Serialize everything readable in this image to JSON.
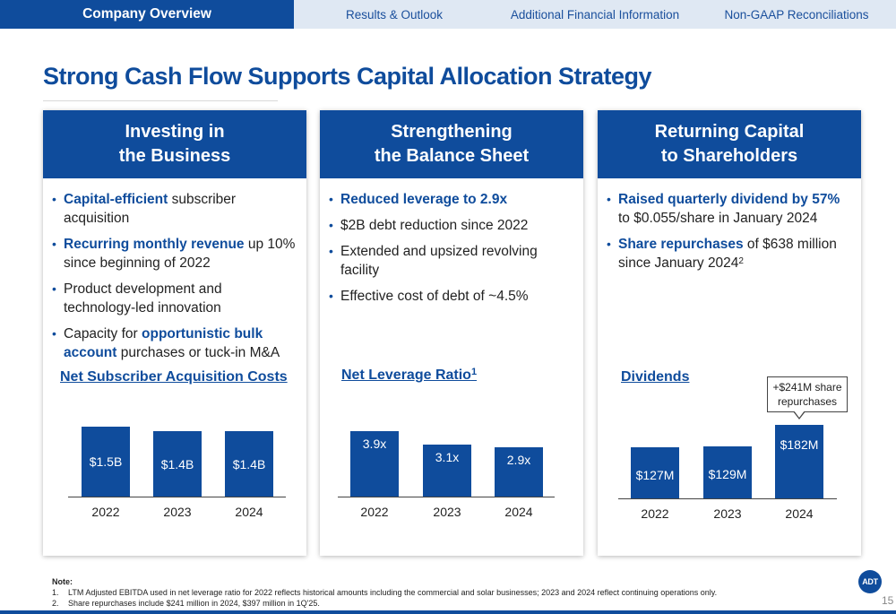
{
  "nav": {
    "active": "Company Overview",
    "tabs": [
      "Results & Outlook",
      "Additional Financial Information",
      "Non-GAAP Reconciliations"
    ]
  },
  "title": "Strong Cash Flow Supports Capital Allocation Strategy",
  "cards": [
    {
      "header_line1": "Investing in",
      "header_line2": "the Business",
      "bullets": [
        {
          "hl": "Capital-efficient",
          "text": " subscriber acquisition"
        },
        {
          "hl": "Recurring monthly revenue",
          "text": " up 10% since beginning of 2022"
        },
        {
          "pre": "Product development and technology-led innovation"
        },
        {
          "pre": "Capacity for ",
          "hl": "opportunistic bulk account",
          "text": " purchases or tuck-in M&A"
        }
      ]
    },
    {
      "header_line1": "Strengthening",
      "header_line2": "the Balance Sheet",
      "bullets": [
        {
          "hl": "Reduced leverage to 2.9x"
        },
        {
          "pre": "$2B debt reduction since 2022"
        },
        {
          "pre": "Extended and upsized revolving facility"
        },
        {
          "pre": "Effective cost of debt of ~4.5%"
        }
      ]
    },
    {
      "header_line1": "Returning Capital",
      "header_line2": "to Shareholders",
      "bullets": [
        {
          "hl": "Raised quarterly dividend by 57%",
          "text": " to $0.055/share in January 2024"
        },
        {
          "hl": "Share repurchases",
          "text": " of $638 million since January 2024",
          "sup": "2"
        }
      ]
    }
  ],
  "chart_data": [
    {
      "type": "bar",
      "title": "Net Subscriber Acquisition Costs",
      "categories": [
        "2022",
        "2023",
        "2024"
      ],
      "values": [
        1.5,
        1.4,
        1.4
      ],
      "data_labels": [
        "$1.5B",
        "$1.4B",
        "$1.4B"
      ]
    },
    {
      "type": "bar",
      "title": "Net Leverage Ratio",
      "title_sup": "1",
      "categories": [
        "2022",
        "2023",
        "2024"
      ],
      "values": [
        3.9,
        3.1,
        2.9
      ],
      "data_labels": [
        "3.9x",
        "3.1x",
        "2.9x"
      ]
    },
    {
      "type": "bar",
      "title": "Dividends",
      "categories": [
        "2022",
        "2023",
        "2024"
      ],
      "values": [
        127,
        129,
        182
      ],
      "data_labels": [
        "$127M",
        "$129M",
        "$182M"
      ],
      "annotation": "+$241M share repurchases"
    }
  ],
  "callout": {
    "line1": "+$241M share",
    "line2": "repurchases"
  },
  "notes": {
    "heading": "Note:",
    "items": [
      {
        "num": "1.",
        "text": "LTM Adjusted EBITDA used in net leverage ratio for 2022 reflects historical amounts including the commercial and solar businesses; 2023 and 2024 reflect continuing operations only."
      },
      {
        "num": "2.",
        "text": "Share repurchases include $241 million in 2024, $397 million in 1Q'25."
      }
    ]
  },
  "logo": "ADT",
  "page_number": "15",
  "colors": {
    "brand": "#0f4c9c",
    "nav_bg": "#dfe8f3"
  }
}
